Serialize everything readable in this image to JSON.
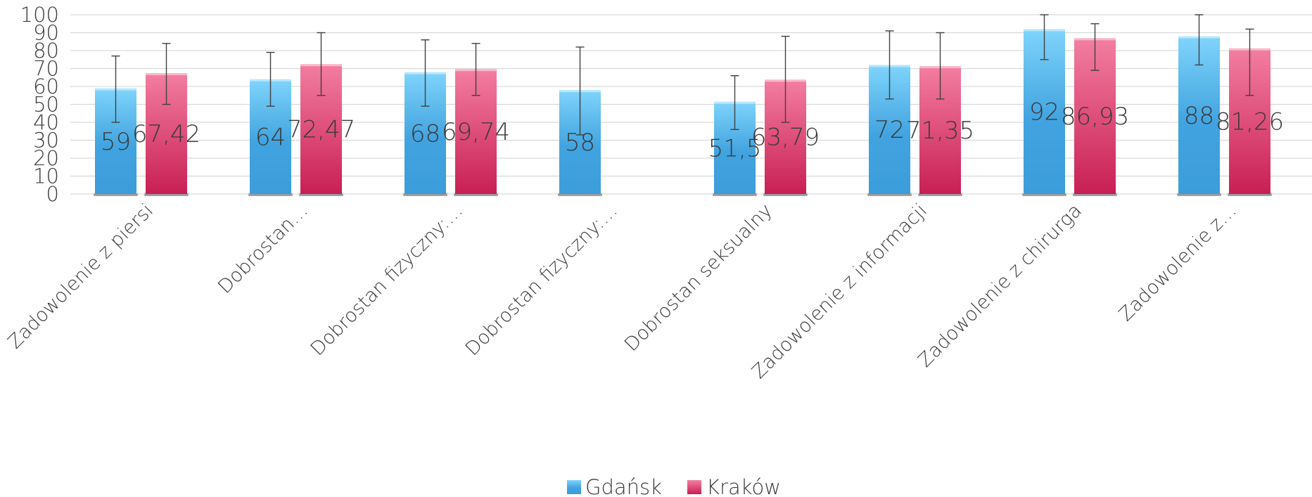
{
  "chart_data": {
    "type": "bar",
    "categories": [
      "Zadowolenie z piersi",
      "Dobrostan…",
      "Dobrostan fizyczny:…",
      "Dobrostan fizyczny:…",
      "Dobrostan seksualny",
      "Zadowolenie z informacji",
      "Zadowolenie z chirurga",
      "Zadowolenie z…"
    ],
    "series": [
      {
        "name": "Gdańsk",
        "values": [
          59,
          64,
          68,
          58,
          51.5,
          72,
          92,
          88
        ],
        "labels": [
          "59",
          "64",
          "68",
          "58",
          "51,5",
          "72",
          "92",
          "88"
        ],
        "error_low": [
          40,
          49,
          49,
          33,
          36,
          53,
          75,
          72
        ],
        "error_high": [
          77,
          79,
          86,
          82,
          66,
          91,
          100,
          100
        ],
        "color": "#41a3df"
      },
      {
        "name": "Kraków",
        "values": [
          67.42,
          72.47,
          69.74,
          null,
          63.79,
          71.35,
          86.93,
          81.26
        ],
        "labels": [
          "67,42",
          "72,47",
          "69,74",
          "",
          "63,79",
          "71,35",
          "86,93",
          "81,26"
        ],
        "error_low": [
          50,
          55,
          55,
          null,
          40,
          53,
          69,
          55
        ],
        "error_high": [
          84,
          90,
          84,
          null,
          88,
          90,
          95,
          92
        ],
        "color": "#d22f62"
      }
    ],
    "y_ticks": [
      "0",
      "10",
      "20",
      "30",
      "40",
      "50",
      "60",
      "70",
      "80",
      "90",
      "100"
    ],
    "ylim": [
      0,
      100
    ],
    "grid": true,
    "legend": "bottom",
    "title": "",
    "xlabel": "",
    "ylabel": ""
  }
}
